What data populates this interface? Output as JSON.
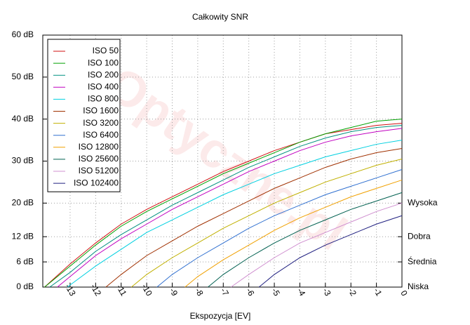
{
  "chart_data": {
    "type": "line",
    "title": "Całkowity SNR",
    "xlabel": "Ekspozycja [EV]",
    "watermark": "Optyczne.pl",
    "xlim": [
      -14.07,
      0
    ],
    "ylim": [
      0,
      60
    ],
    "y2lim": [
      0,
      60
    ],
    "xticks": [
      -13,
      -12,
      -11,
      -10,
      -9,
      -8,
      -7,
      -6,
      -5,
      -4,
      -3,
      -2,
      -1,
      0
    ],
    "yticks": [
      {
        "value": 0,
        "label": "0 dB"
      },
      {
        "value": 6,
        "label": "6 dB"
      },
      {
        "value": 12,
        "label": "12 dB"
      },
      {
        "value": 20,
        "label": "20 dB"
      },
      {
        "value": 30,
        "label": "30 dB"
      },
      {
        "value": 40,
        "label": "40 dB"
      },
      {
        "value": 50,
        "label": "50 dB"
      },
      {
        "value": 60,
        "label": "60 dB"
      }
    ],
    "y2ticks": [
      {
        "value": 0,
        "label": "Niska"
      },
      {
        "value": 6,
        "label": "Średnia"
      },
      {
        "value": 12,
        "label": "Dobra"
      },
      {
        "value": 20,
        "label": "Wysoka"
      }
    ],
    "grid": true,
    "legend": "upper left",
    "series": [
      {
        "name": "ISO 50",
        "color": "#d01010",
        "x": [
          -14,
          -13,
          -12,
          -11,
          -10,
          -9,
          -8,
          -7,
          -6,
          -5,
          -4,
          -3,
          -2,
          -1,
          0
        ],
        "values": [
          0,
          5.5,
          10.5,
          15,
          18.5,
          21.5,
          24.5,
          27.5,
          30,
          32.5,
          34.5,
          36.5,
          37.5,
          38.5,
          39
        ]
      },
      {
        "name": "ISO 100",
        "color": "#00a000",
        "x": [
          -14,
          -13,
          -12,
          -11,
          -10,
          -9,
          -8,
          -7,
          -6,
          -5,
          -4,
          -3,
          -2,
          -1,
          0
        ],
        "values": [
          0,
          5,
          10,
          14.5,
          18,
          21,
          24,
          27,
          29.5,
          32,
          34.5,
          36.5,
          38,
          39.5,
          40
        ]
      },
      {
        "name": "ISO 200",
        "color": "#009080",
        "x": [
          -13.8,
          -13,
          -12,
          -11,
          -10,
          -9,
          -8,
          -7,
          -6,
          -5,
          -4,
          -3,
          -2,
          -1,
          0
        ],
        "values": [
          0,
          3.5,
          8.5,
          12.5,
          16,
          19.5,
          22.5,
          25.5,
          28.5,
          31,
          33.5,
          35.5,
          37,
          38,
          38.5
        ]
      },
      {
        "name": "ISO 400",
        "color": "#c000c0",
        "x": [
          -13.5,
          -13,
          -12,
          -11,
          -10,
          -9,
          -8,
          -7,
          -6,
          -5,
          -4,
          -3,
          -2,
          -1,
          0
        ],
        "values": [
          0,
          2.5,
          7.5,
          11.5,
          15,
          18.5,
          21.5,
          24.5,
          27.5,
          30,
          32.5,
          34.5,
          36,
          37,
          37.8
        ]
      },
      {
        "name": "ISO 800",
        "color": "#00d0e0",
        "x": [
          -13.1,
          -13,
          -12,
          -11,
          -10,
          -9,
          -8,
          -7,
          -6,
          -5,
          -4,
          -3,
          -2,
          -1,
          0
        ],
        "values": [
          0,
          0.5,
          5,
          9,
          13,
          16,
          19,
          22,
          24.5,
          27,
          29,
          31,
          32.5,
          34,
          35
        ]
      },
      {
        "name": "ISO 1600",
        "color": "#a03000",
        "x": [
          -11.6,
          -11,
          -10,
          -9,
          -8,
          -7,
          -6,
          -5,
          -4,
          -3,
          -2,
          -1,
          0
        ],
        "values": [
          0,
          3,
          7.5,
          11,
          14.5,
          17.5,
          20.5,
          23.5,
          26,
          28.5,
          30.5,
          32,
          33
        ]
      },
      {
        "name": "ISO 3200",
        "color": "#c0b000",
        "x": [
          -10.6,
          -10,
          -9,
          -8,
          -7,
          -6,
          -5,
          -4,
          -3,
          -2,
          -1,
          0
        ],
        "values": [
          0,
          3,
          7,
          10.5,
          14,
          17,
          20,
          22.5,
          25,
          27,
          29,
          30.5
        ]
      },
      {
        "name": "ISO 6400",
        "color": "#3070d0",
        "x": [
          -9.6,
          -9,
          -8,
          -7,
          -6,
          -5,
          -4,
          -3,
          -2,
          -1,
          0
        ],
        "values": [
          0,
          3,
          7,
          10.5,
          14,
          17,
          19.5,
          22,
          24,
          26,
          28
        ]
      },
      {
        "name": "ISO 12800",
        "color": "#f0a000",
        "x": [
          -8.5,
          -8,
          -7,
          -6,
          -5,
          -4,
          -3,
          -2,
          -1,
          0
        ],
        "values": [
          0,
          2.5,
          6.5,
          10,
          13.5,
          16.5,
          19,
          21.5,
          23.5,
          25.5
        ]
      },
      {
        "name": "ISO 25600",
        "color": "#006050",
        "x": [
          -7.6,
          -7,
          -6,
          -5,
          -4,
          -3,
          -2,
          -1,
          0
        ],
        "values": [
          0,
          3,
          7,
          10.5,
          13.5,
          16,
          18.5,
          20.5,
          22.5
        ]
      },
      {
        "name": "ISO 51200",
        "color": "#d090d0",
        "x": [
          -6.7,
          -6,
          -5,
          -4,
          -3,
          -2,
          -1,
          0
        ],
        "values": [
          0,
          3,
          7,
          10.5,
          13,
          15.5,
          18,
          20
        ]
      },
      {
        "name": "ISO 102400",
        "color": "#202080",
        "x": [
          -5.6,
          -5,
          -4,
          -3,
          -2,
          -1,
          0
        ],
        "values": [
          0,
          3,
          7,
          10,
          12.5,
          15,
          17
        ]
      }
    ]
  }
}
